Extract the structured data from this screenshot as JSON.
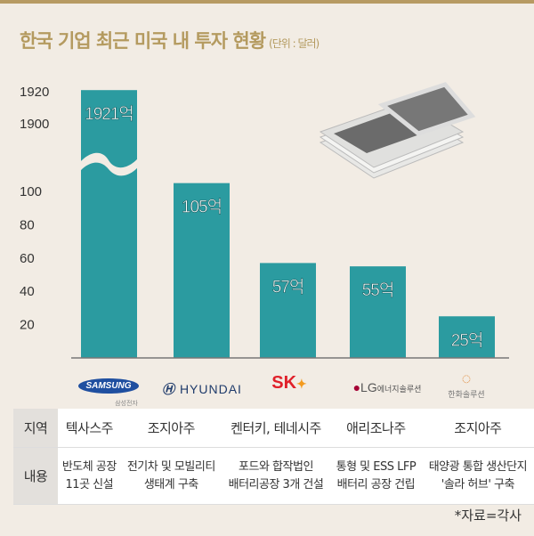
{
  "header": {
    "title": "한국 기업 최근 미국 내 투자 현황",
    "unit": "(단위 : 달러)"
  },
  "colors": {
    "bar": "#2b9ba0",
    "accent": "#b49a5f",
    "background": "#f2ece4"
  },
  "chart_data": {
    "type": "bar",
    "title": "한국 기업 최근 미국 내 투자 현황",
    "unit": "억 달러",
    "categories": [
      "삼성전자",
      "현대차",
      "SK",
      "LG에너지솔루션",
      "한화솔루션"
    ],
    "values": [
      1921,
      105,
      57,
      55,
      25
    ],
    "data_labels": [
      "1921억",
      "105억",
      "57억",
      "55억",
      "25억"
    ],
    "y_ticks": [
      "1920",
      "1900",
      "100",
      "80",
      "60",
      "40",
      "20"
    ],
    "y_tick_values": [
      1920,
      1900,
      100,
      80,
      60,
      40,
      20
    ],
    "axis_break": true
  },
  "logos": [
    "SAMSUNG",
    "삼성전자",
    "HYUNDAI",
    "SK",
    "LG",
    "에너지솔루션",
    "한화솔루션"
  ],
  "table": {
    "row_headers": [
      "지역",
      "내용"
    ],
    "region": [
      "텍사스주",
      "조지아주",
      "켄터키, 테네시주",
      "애리조나주",
      "조지아주"
    ],
    "content": [
      [
        "반도체 공장",
        "11곳 신설"
      ],
      [
        "전기차 및 모빌리티",
        "생태계 구축"
      ],
      [
        "포드와 합작법인",
        "배터리공장 3개 건설"
      ],
      [
        "통형 및 ESS LFP",
        "배터리 공장 건립"
      ],
      [
        "태양광 통합 생산단지",
        "'솔라 허브' 구축"
      ]
    ]
  },
  "source": "*자료=각사"
}
